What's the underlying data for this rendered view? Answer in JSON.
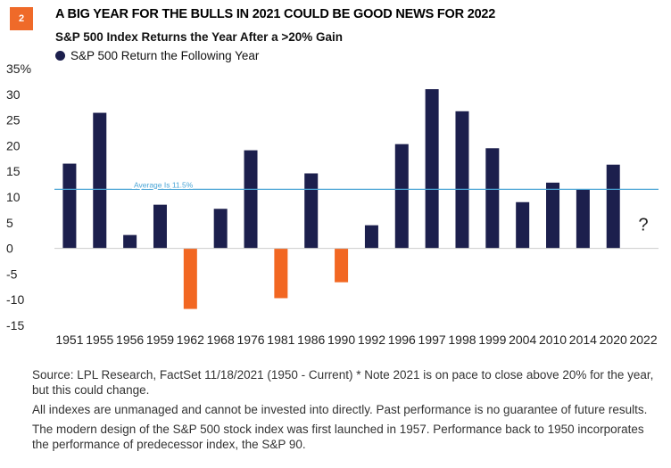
{
  "header": {
    "badge": "2",
    "title": "A BIG YEAR FOR THE BULLS IN 2021 COULD BE GOOD NEWS FOR 2022",
    "subtitle": "S&P 500 Index Returns the Year After a >20% Gain"
  },
  "colors": {
    "badge": "#ef6a29",
    "positive_bar": "#1c1f4d",
    "negative_bar": "#f26722",
    "average_line": "#4aa5d6",
    "gridline": "#cccccc"
  },
  "chart_data": {
    "type": "bar",
    "title": "S&P 500 Index Returns the Year After a >20% Gain",
    "legend": {
      "label": "S&P 500 Return the Following Year",
      "placement": "top-left"
    },
    "categories": [
      "1951",
      "1955",
      "1956",
      "1959",
      "1962",
      "1968",
      "1976",
      "1981",
      "1986",
      "1990",
      "1992",
      "1996",
      "1997",
      "1998",
      "1999",
      "2004",
      "2010",
      "2014",
      "2020",
      "2022"
    ],
    "values": [
      16.5,
      26.4,
      2.6,
      8.5,
      -11.8,
      7.7,
      19.1,
      -9.7,
      14.6,
      -6.6,
      4.5,
      20.3,
      31.0,
      26.7,
      19.5,
      9.0,
      12.8,
      11.4,
      16.3,
      null
    ],
    "pending_label": "?",
    "ylim": [
      -15,
      35
    ],
    "yticks": [
      -15,
      -10,
      -5,
      0,
      5,
      10,
      15,
      20,
      25,
      30,
      35
    ],
    "ytick_labels": [
      "-15",
      "-10",
      "-5",
      "0",
      "5",
      "10",
      "15",
      "20",
      "25",
      "30",
      "35%"
    ],
    "average": {
      "value": 11.5,
      "label": "Average Is 11.5%"
    },
    "grid": false
  },
  "footer": {
    "source": "Source: LPL Research, FactSet 11/18/2021 (1950 - Current) * Note 2021 is on pace to close above 20% for the year, but this could change.",
    "disclaimer": "All indexes are unmanaged and cannot be invested into directly. Past performance is no guarantee of future results.",
    "note": "The modern design of the S&P 500 stock index was first launched in 1957. Performance back to 1950 incorporates the performance of predecessor index, the S&P 90."
  }
}
